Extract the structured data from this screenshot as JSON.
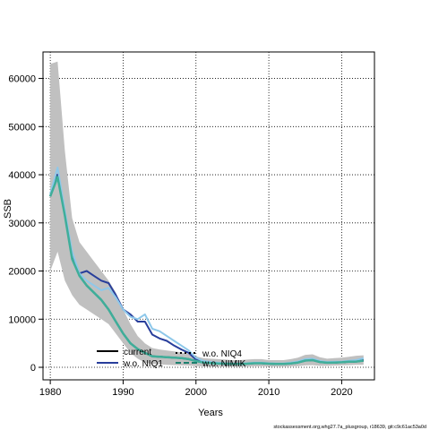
{
  "chart_data": {
    "type": "line",
    "xlabel": "Years",
    "ylabel": "SSB",
    "xlim": [
      1979,
      2024.5
    ],
    "ylim": [
      -2600,
      65500
    ],
    "xticks": [
      1980,
      1990,
      2000,
      2010,
      2020
    ],
    "yticks": [
      0,
      10000,
      20000,
      30000,
      40000,
      50000,
      60000
    ],
    "grid": true,
    "legend_position": "bottom-left",
    "band": {
      "color": "#c0c0c0",
      "x": [
        1980,
        1981,
        1982,
        1983,
        1984,
        1985,
        1986,
        1987,
        1988,
        1989,
        1990,
        1991,
        1992,
        1993,
        1994,
        1995,
        1996,
        1997,
        1998,
        1999,
        2000,
        2001,
        2002,
        2003,
        2004,
        2005,
        2006,
        2007,
        2008,
        2009,
        2010,
        2011,
        2012,
        2013,
        2014,
        2015,
        2016,
        2017,
        2018,
        2019,
        2020,
        2021,
        2022,
        2023
      ],
      "lower": [
        20000,
        24000,
        18000,
        15000,
        13000,
        12000,
        11000,
        10000,
        9000,
        7000,
        5000,
        3000,
        1800,
        1000,
        700,
        600,
        500,
        450,
        400,
        350,
        250,
        200,
        150,
        150,
        150,
        150,
        150,
        150,
        200,
        200,
        150,
        150,
        150,
        200,
        250,
        400,
        450,
        300,
        300,
        350,
        400,
        450,
        500,
        500
      ],
      "upper": [
        63000,
        63500,
        45000,
        31000,
        26000,
        24000,
        22000,
        20000,
        18000,
        15500,
        12000,
        9000,
        6500,
        5000,
        4000,
        3700,
        3500,
        3300,
        3100,
        2800,
        2300,
        1900,
        1800,
        1700,
        1600,
        1500,
        1500,
        1600,
        1700,
        1700,
        1500,
        1500,
        1500,
        1700,
        2000,
        2600,
        2700,
        2100,
        1800,
        1900,
        2000,
        2200,
        2400,
        2500
      ]
    },
    "x": [
      1980,
      1981,
      1982,
      1983,
      1984,
      1985,
      1986,
      1987,
      1988,
      1989,
      1990,
      1991,
      1992,
      1993,
      1994,
      1995,
      1996,
      1997,
      1998,
      1999,
      2000,
      2001,
      2002,
      2003,
      2004,
      2005,
      2006,
      2007,
      2008,
      2009,
      2010,
      2011,
      2012,
      2013,
      2014,
      2015,
      2016,
      2017,
      2018,
      2019,
      2020,
      2021,
      2022,
      2023
    ],
    "series": [
      {
        "name": "current",
        "color": "#000000",
        "dash": "solid",
        "width": 2,
        "values": [
          35500,
          40000,
          32000,
          23000,
          19000,
          17000,
          15500,
          14000,
          12000,
          9500,
          7000,
          5000,
          3800,
          3000,
          2300,
          2200,
          2100,
          2000,
          1900,
          1700,
          1300,
          1000,
          900,
          800,
          750,
          700,
          700,
          750,
          850,
          850,
          750,
          700,
          700,
          800,
          1000,
          1400,
          1500,
          1100,
          950,
          1000,
          1050,
          1150,
          1200,
          1400
        ]
      },
      {
        "name": "w.o. NIQ4",
        "color": "#000000",
        "dash": "dotted",
        "width": 2,
        "values": [
          35500,
          40000,
          32000,
          23000,
          19000,
          17000,
          15500,
          14000,
          12000,
          9500,
          7000,
          5000,
          3800,
          3000,
          2300,
          2200,
          2100,
          2000,
          1900,
          1700,
          1300,
          1000,
          900,
          800,
          750,
          700,
          700,
          750,
          850,
          850,
          750,
          700,
          700,
          800,
          1000,
          1400,
          1500,
          1100,
          950,
          1000,
          1050,
          1150,
          1200,
          1400
        ]
      },
      {
        "name": "w.o. NIQ1",
        "color": "#283e9b",
        "dash": "solid",
        "width": 2,
        "values": [
          35500,
          40000,
          32000,
          23500,
          19500,
          20000,
          19000,
          18000,
          17500,
          15000,
          12000,
          11000,
          9500,
          9500,
          6800,
          6000,
          5500,
          4500,
          3700,
          3000,
          1600,
          1000,
          950,
          800,
          700,
          650,
          700,
          750,
          900,
          900,
          800,
          700,
          700,
          900,
          1100,
          1500,
          1600,
          1200,
          1000,
          1000,
          1100,
          1200,
          1300,
          1500
        ]
      },
      {
        "name": "w.o. NIMIK",
        "color": "#1b7f6e",
        "dash": "dashed",
        "width": 2,
        "values": [
          35500,
          40000,
          32000,
          23000,
          19000,
          17000,
          15500,
          14000,
          12000,
          9500,
          7000,
          5000,
          3800,
          3000,
          2300,
          2200,
          2100,
          2000,
          1900,
          1700,
          1300,
          1000,
          900,
          800,
          750,
          700,
          700,
          750,
          850,
          850,
          750,
          700,
          700,
          800,
          1000,
          1400,
          1500,
          1100,
          950,
          1000,
          1050,
          1150,
          1200,
          1400
        ]
      },
      {
        "name": "",
        "color": "#8ec8ea",
        "dash": "solid",
        "width": 2,
        "values": [
          36000,
          41500,
          32500,
          24000,
          19500,
          18000,
          17000,
          16000,
          16500,
          14500,
          12000,
          10500,
          10000,
          11000,
          8000,
          7500,
          6500,
          5500,
          4500,
          3500,
          2000,
          1300,
          1100,
          950,
          850,
          800,
          800,
          850,
          950,
          950,
          850,
          800,
          800,
          950,
          1200,
          1700,
          1800,
          1300,
          1100,
          1150,
          1200,
          1350,
          1500,
          1900
        ]
      },
      {
        "name": "",
        "color": "#3fae9a",
        "dash": "solid",
        "width": 2.5,
        "values": [
          35500,
          39500,
          31500,
          22500,
          19000,
          17000,
          15500,
          14000,
          12000,
          9500,
          7000,
          5000,
          3800,
          3000,
          2300,
          2200,
          2100,
          2000,
          1900,
          1700,
          1300,
          1000,
          900,
          800,
          750,
          700,
          700,
          750,
          850,
          850,
          750,
          700,
          700,
          800,
          1000,
          1400,
          1500,
          1100,
          950,
          1000,
          1050,
          1150,
          1200,
          1400
        ]
      }
    ]
  },
  "footer_text": "stockassessment.org,whg27.7a_plusgroup, r18639, git:c9c61ac53a0d"
}
